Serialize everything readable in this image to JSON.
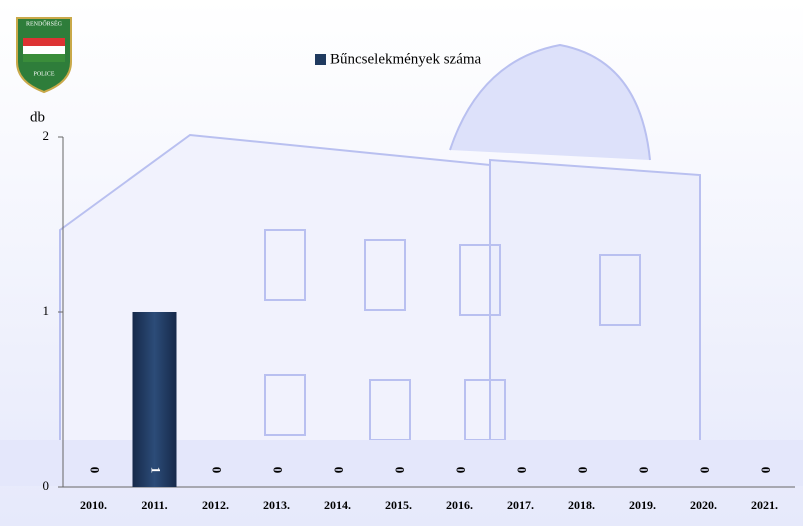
{
  "logo": {
    "top_text": "RENDŐRSÉG",
    "bottom_text": "POLICE"
  },
  "chart_data": {
    "type": "bar",
    "legend": "Bűncselekmények száma",
    "y_label": "db",
    "categories": [
      "2010.",
      "2011.",
      "2012.",
      "2013.",
      "2014.",
      "2015.",
      "2016.",
      "2017.",
      "2018.",
      "2019.",
      "2020.",
      "2021."
    ],
    "values": [
      0,
      1,
      0,
      0,
      0,
      0,
      0,
      0,
      0,
      0,
      0,
      0
    ],
    "color": "#1f3a5f",
    "ylim": [
      0,
      2
    ],
    "yticks": [
      0,
      1,
      2
    ]
  }
}
